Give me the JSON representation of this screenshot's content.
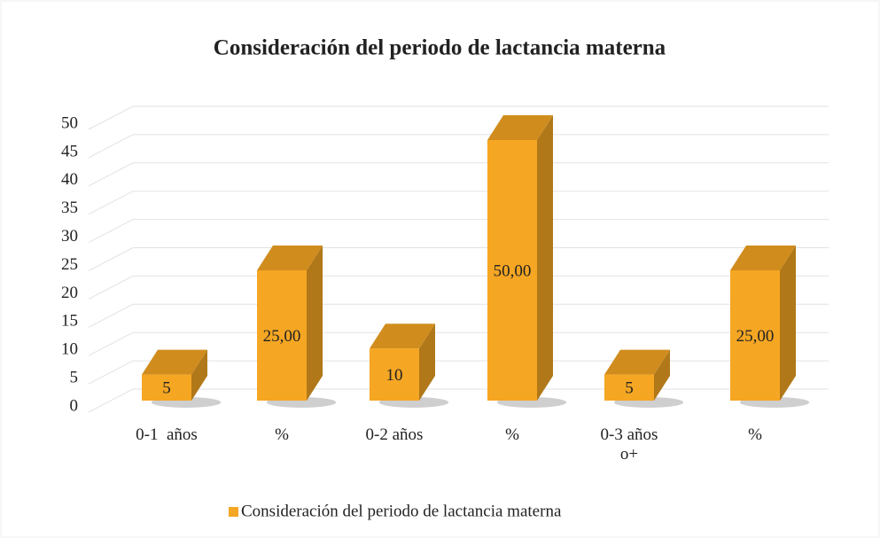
{
  "chart_data": {
    "type": "bar3d",
    "title": "Consideración del periodo de lactancia materna",
    "categories": [
      "0-1  años",
      "%",
      "0-2 años",
      "%",
      "0-3 años o+",
      "%"
    ],
    "series": [
      {
        "name": "Consideración del periodo de lactancia materna",
        "color": "#f5a623",
        "values": [
          5,
          25,
          10,
          50,
          5,
          25
        ],
        "value_labels": [
          "5",
          "25,00",
          "10",
          "50,00",
          "5",
          "25,00"
        ]
      }
    ],
    "ylim": [
      0,
      50
    ],
    "yticks": [
      0,
      5,
      10,
      15,
      20,
      25,
      30,
      35,
      40,
      45,
      50
    ],
    "grid": true,
    "legend": "bottom"
  }
}
